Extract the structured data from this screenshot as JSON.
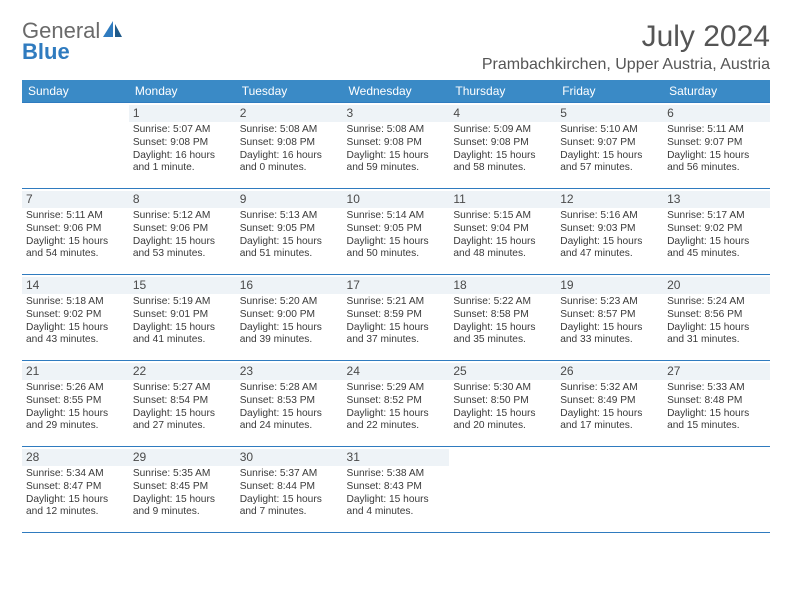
{
  "logo": {
    "text1": "General",
    "text2": "Blue"
  },
  "title": "July 2024",
  "location": "Prambachkirchen, Upper Austria, Austria",
  "colors": {
    "header_bg": "#3a8ac6",
    "header_text": "#ffffff",
    "rule": "#2f7bbf",
    "daynum_bg": "#eef3f7",
    "body_text": "#3a3a3a",
    "title_text": "#555555",
    "logo_gray": "#6a6a6a",
    "logo_blue": "#2f7bbf"
  },
  "day_headers": [
    "Sunday",
    "Monday",
    "Tuesday",
    "Wednesday",
    "Thursday",
    "Friday",
    "Saturday"
  ],
  "weeks": [
    [
      null,
      {
        "n": "1",
        "sr": "5:07 AM",
        "ss": "9:08 PM",
        "dl": "16 hours and 1 minute."
      },
      {
        "n": "2",
        "sr": "5:08 AM",
        "ss": "9:08 PM",
        "dl": "16 hours and 0 minutes."
      },
      {
        "n": "3",
        "sr": "5:08 AM",
        "ss": "9:08 PM",
        "dl": "15 hours and 59 minutes."
      },
      {
        "n": "4",
        "sr": "5:09 AM",
        "ss": "9:08 PM",
        "dl": "15 hours and 58 minutes."
      },
      {
        "n": "5",
        "sr": "5:10 AM",
        "ss": "9:07 PM",
        "dl": "15 hours and 57 minutes."
      },
      {
        "n": "6",
        "sr": "5:11 AM",
        "ss": "9:07 PM",
        "dl": "15 hours and 56 minutes."
      }
    ],
    [
      {
        "n": "7",
        "sr": "5:11 AM",
        "ss": "9:06 PM",
        "dl": "15 hours and 54 minutes."
      },
      {
        "n": "8",
        "sr": "5:12 AM",
        "ss": "9:06 PM",
        "dl": "15 hours and 53 minutes."
      },
      {
        "n": "9",
        "sr": "5:13 AM",
        "ss": "9:05 PM",
        "dl": "15 hours and 51 minutes."
      },
      {
        "n": "10",
        "sr": "5:14 AM",
        "ss": "9:05 PM",
        "dl": "15 hours and 50 minutes."
      },
      {
        "n": "11",
        "sr": "5:15 AM",
        "ss": "9:04 PM",
        "dl": "15 hours and 48 minutes."
      },
      {
        "n": "12",
        "sr": "5:16 AM",
        "ss": "9:03 PM",
        "dl": "15 hours and 47 minutes."
      },
      {
        "n": "13",
        "sr": "5:17 AM",
        "ss": "9:02 PM",
        "dl": "15 hours and 45 minutes."
      }
    ],
    [
      {
        "n": "14",
        "sr": "5:18 AM",
        "ss": "9:02 PM",
        "dl": "15 hours and 43 minutes."
      },
      {
        "n": "15",
        "sr": "5:19 AM",
        "ss": "9:01 PM",
        "dl": "15 hours and 41 minutes."
      },
      {
        "n": "16",
        "sr": "5:20 AM",
        "ss": "9:00 PM",
        "dl": "15 hours and 39 minutes."
      },
      {
        "n": "17",
        "sr": "5:21 AM",
        "ss": "8:59 PM",
        "dl": "15 hours and 37 minutes."
      },
      {
        "n": "18",
        "sr": "5:22 AM",
        "ss": "8:58 PM",
        "dl": "15 hours and 35 minutes."
      },
      {
        "n": "19",
        "sr": "5:23 AM",
        "ss": "8:57 PM",
        "dl": "15 hours and 33 minutes."
      },
      {
        "n": "20",
        "sr": "5:24 AM",
        "ss": "8:56 PM",
        "dl": "15 hours and 31 minutes."
      }
    ],
    [
      {
        "n": "21",
        "sr": "5:26 AM",
        "ss": "8:55 PM",
        "dl": "15 hours and 29 minutes."
      },
      {
        "n": "22",
        "sr": "5:27 AM",
        "ss": "8:54 PM",
        "dl": "15 hours and 27 minutes."
      },
      {
        "n": "23",
        "sr": "5:28 AM",
        "ss": "8:53 PM",
        "dl": "15 hours and 24 minutes."
      },
      {
        "n": "24",
        "sr": "5:29 AM",
        "ss": "8:52 PM",
        "dl": "15 hours and 22 minutes."
      },
      {
        "n": "25",
        "sr": "5:30 AM",
        "ss": "8:50 PM",
        "dl": "15 hours and 20 minutes."
      },
      {
        "n": "26",
        "sr": "5:32 AM",
        "ss": "8:49 PM",
        "dl": "15 hours and 17 minutes."
      },
      {
        "n": "27",
        "sr": "5:33 AM",
        "ss": "8:48 PM",
        "dl": "15 hours and 15 minutes."
      }
    ],
    [
      {
        "n": "28",
        "sr": "5:34 AM",
        "ss": "8:47 PM",
        "dl": "15 hours and 12 minutes."
      },
      {
        "n": "29",
        "sr": "5:35 AM",
        "ss": "8:45 PM",
        "dl": "15 hours and 9 minutes."
      },
      {
        "n": "30",
        "sr": "5:37 AM",
        "ss": "8:44 PM",
        "dl": "15 hours and 7 minutes."
      },
      {
        "n": "31",
        "sr": "5:38 AM",
        "ss": "8:43 PM",
        "dl": "15 hours and 4 minutes."
      },
      null,
      null,
      null
    ]
  ],
  "labels": {
    "sunrise": "Sunrise: ",
    "sunset": "Sunset: ",
    "daylight": "Daylight: "
  }
}
